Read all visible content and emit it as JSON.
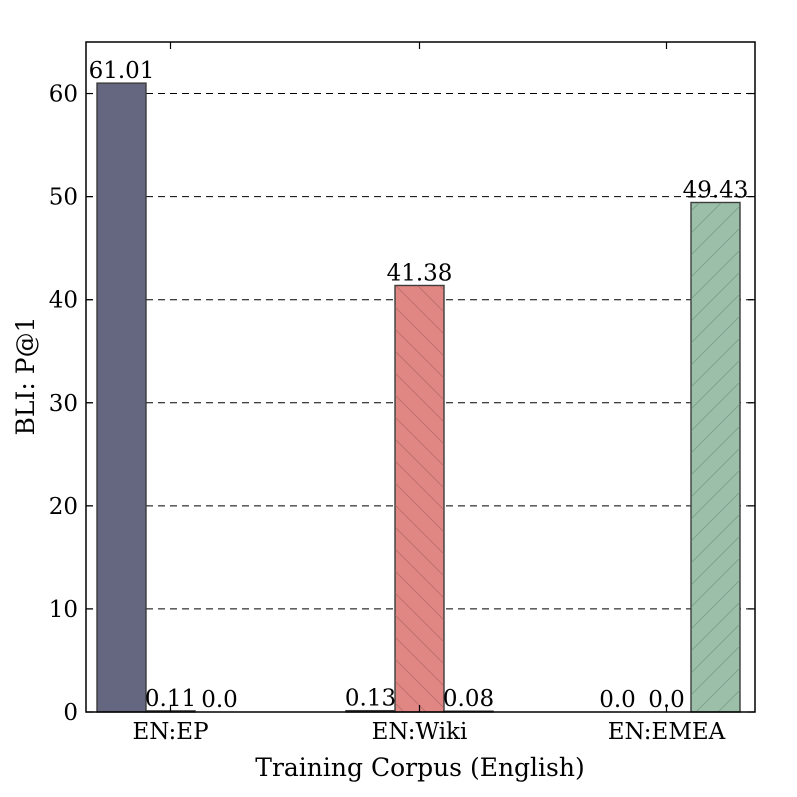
{
  "chart_data": {
    "type": "bar",
    "xlabel": "Training Corpus (English)",
    "ylabel": "BLI: P@1",
    "ylim": [
      0,
      65
    ],
    "yticks": [
      0,
      10,
      20,
      30,
      40,
      50,
      60
    ],
    "grid": "horizontal dashed",
    "categories": [
      "EN:EP",
      "EN:Wiki",
      "EN:EMEA"
    ],
    "series": [
      {
        "values": [
          61.01,
          0.13,
          0.0
        ],
        "labels": [
          "61.01",
          "0.13",
          "0.0"
        ],
        "color": "#656780",
        "hatch": "none"
      },
      {
        "values": [
          0.11,
          41.38,
          0.0
        ],
        "labels": [
          "0.11",
          "41.38",
          "0.0"
        ],
        "color": "#e08683",
        "hatch": "backslash"
      },
      {
        "values": [
          0.0,
          0.08,
          49.43
        ],
        "labels": [
          "0.0",
          "0.08",
          "49.43"
        ],
        "color": "#9bbfa9",
        "hatch": "slash"
      }
    ]
  }
}
